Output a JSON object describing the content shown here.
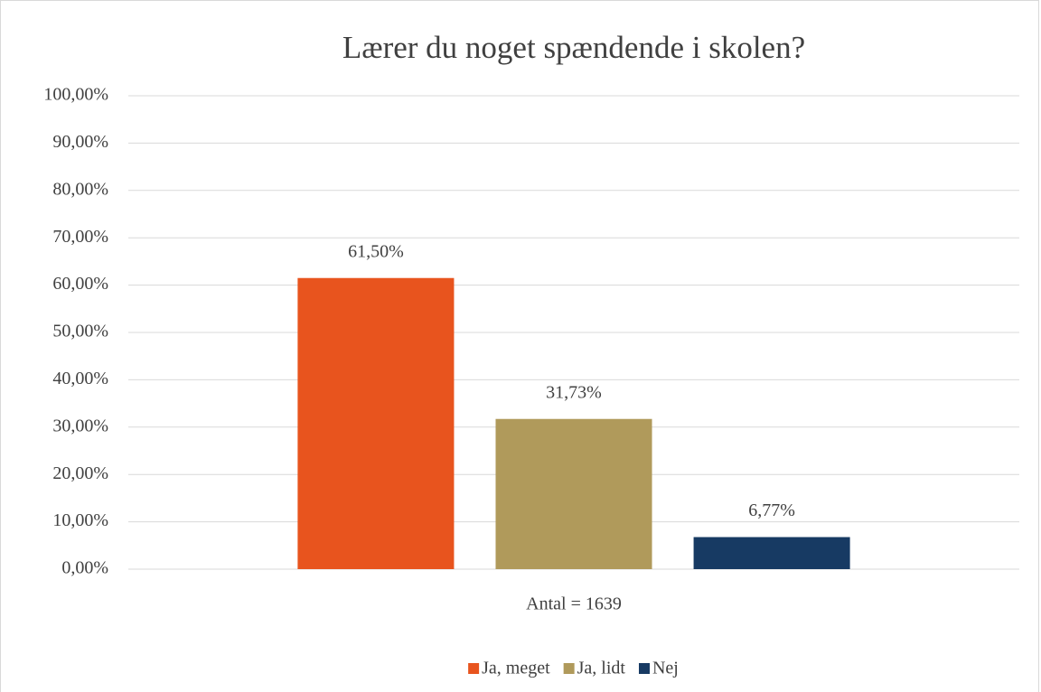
{
  "chart_data": {
    "type": "bar",
    "title": "Lærer du noget spændende i skolen?",
    "categories": [
      "Antal = 1639"
    ],
    "series": [
      {
        "name": "Ja, meget",
        "color": "#e8541e",
        "values": [
          61.5
        ],
        "value_labels": [
          "61,50%"
        ]
      },
      {
        "name": "Ja, lidt",
        "color": "#b09a5b",
        "values": [
          31.73
        ],
        "value_labels": [
          "31,73%"
        ]
      },
      {
        "name": "Nej",
        "color": "#173a63",
        "values": [
          6.77
        ],
        "value_labels": [
          "6,77%"
        ]
      }
    ],
    "ylim": [
      0,
      100
    ],
    "yticks": [
      {
        "value": 0,
        "label": "0,00%"
      },
      {
        "value": 10,
        "label": "10,00%"
      },
      {
        "value": 20,
        "label": "20,00%"
      },
      {
        "value": 30,
        "label": "30,00%"
      },
      {
        "value": 40,
        "label": "40,00%"
      },
      {
        "value": 50,
        "label": "50,00%"
      },
      {
        "value": 60,
        "label": "60,00%"
      },
      {
        "value": 70,
        "label": "70,00%"
      },
      {
        "value": 80,
        "label": "80,00%"
      },
      {
        "value": 90,
        "label": "90,00%"
      },
      {
        "value": 100,
        "label": "100,00%"
      }
    ],
    "grid": true,
    "legend": "bottom"
  }
}
